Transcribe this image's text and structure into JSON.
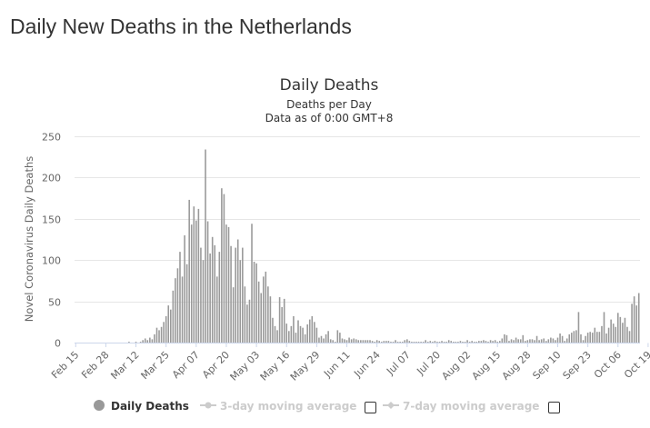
{
  "page": {
    "title": "Daily New Deaths in the Netherlands"
  },
  "chart_data": {
    "type": "bar",
    "title": "Daily Deaths",
    "subtitle_lines": [
      "Deaths per Day",
      "Data as of 0:00 GMT+8"
    ],
    "xlabel": "",
    "ylabel": "Novel Coronavirus Daily Deaths",
    "ylim": [
      0,
      250
    ],
    "yticks": [
      0,
      50,
      100,
      150,
      200,
      250
    ],
    "grid": true,
    "legend_position": "bottom",
    "bar_color": "#999999",
    "x_start": "Feb 15",
    "x_tick_labels": [
      "Feb 15",
      "Feb 28",
      "Mar 12",
      "Mar 25",
      "Apr 07",
      "Apr 20",
      "May 03",
      "May 16",
      "May 29",
      "Jun 11",
      "Jun 24",
      "Jul 07",
      "Jul 20",
      "Aug 02",
      "Aug 15",
      "Aug 28",
      "Sep 10",
      "Sep 23",
      "Oct 06",
      "Oct 19"
    ],
    "series": [
      {
        "name": "Daily Deaths",
        "values": [
          0,
          0,
          0,
          0,
          0,
          0,
          0,
          0,
          0,
          0,
          0,
          0,
          0,
          0,
          0,
          0,
          0,
          0,
          0,
          0,
          0,
          0,
          0,
          1,
          0,
          0,
          1,
          0,
          1,
          3,
          5,
          3,
          6,
          4,
          10,
          18,
          15,
          19,
          25,
          32,
          45,
          40,
          63,
          78,
          90,
          110,
          80,
          130,
          95,
          173,
          143,
          165,
          148,
          162,
          115,
          100,
          234,
          147,
          108,
          128,
          118,
          80,
          110,
          187,
          180,
          143,
          140,
          117,
          67,
          115,
          125,
          100,
          115,
          68,
          46,
          52,
          144,
          98,
          96,
          74,
          60,
          80,
          86,
          68,
          56,
          30,
          20,
          15,
          55,
          43,
          53,
          23,
          14,
          20,
          32,
          12,
          27,
          20,
          18,
          10,
          22,
          28,
          32,
          25,
          18,
          6,
          8,
          5,
          10,
          14,
          4,
          3,
          1,
          15,
          12,
          5,
          4,
          3,
          6,
          4,
          5,
          4,
          3,
          3,
          3,
          3,
          3,
          3,
          2,
          1,
          3,
          2,
          1,
          2,
          2,
          2,
          1,
          1,
          3,
          1,
          1,
          1,
          3,
          4,
          2,
          1,
          1,
          1,
          1,
          1,
          1,
          3,
          1,
          2,
          1,
          2,
          1,
          1,
          2,
          1,
          1,
          3,
          2,
          1,
          1,
          1,
          2,
          1,
          1,
          3,
          1,
          2,
          1,
          1,
          2,
          2,
          3,
          2,
          1,
          3,
          2,
          3,
          1,
          2,
          5,
          10,
          9,
          2,
          4,
          3,
          6,
          4,
          4,
          9,
          2,
          3,
          4,
          4,
          3,
          8,
          3,
          4,
          5,
          2,
          4,
          6,
          5,
          3,
          6,
          11,
          8,
          2,
          5,
          10,
          12,
          14,
          15,
          37,
          10,
          3,
          8,
          12,
          13,
          12,
          18,
          13,
          13,
          20,
          37,
          11,
          18,
          28,
          23,
          19,
          36,
          31,
          24,
          30,
          19,
          14,
          47,
          56,
          45,
          60
        ]
      },
      {
        "name": "3-day moving average",
        "visible": false
      },
      {
        "name": "7-day moving average",
        "visible": false
      }
    ]
  }
}
